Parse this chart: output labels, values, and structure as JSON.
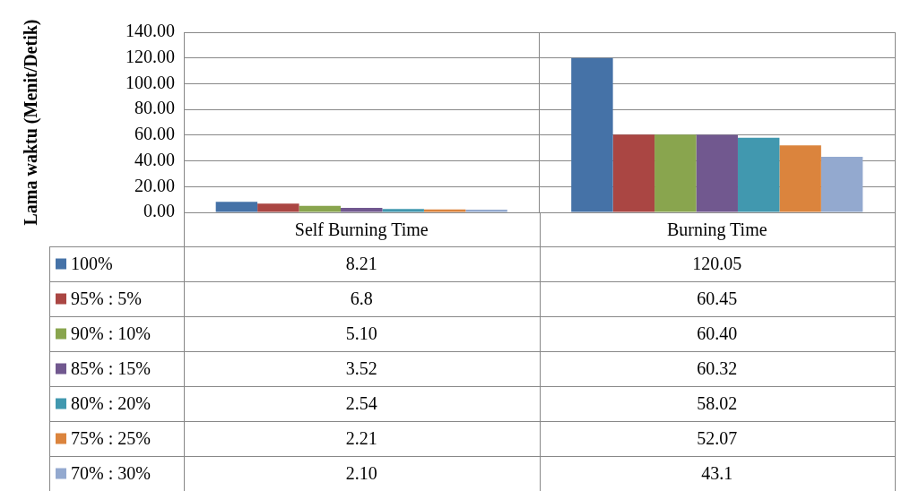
{
  "chart_data": {
    "type": "bar",
    "ylabel": "Lama waktu (Menit/Detik)",
    "categories": [
      "Self Burning Time",
      "Burning Time"
    ],
    "ylim": [
      0,
      140
    ],
    "yticks": [
      {
        "value": 0,
        "label": "0.00"
      },
      {
        "value": 20,
        "label": "20.00"
      },
      {
        "value": 40,
        "label": "40.00"
      },
      {
        "value": 60,
        "label": "60.00"
      },
      {
        "value": 80,
        "label": "80.00"
      },
      {
        "value": 100,
        "label": "100.00"
      },
      {
        "value": 120,
        "label": "120.00"
      },
      {
        "value": 140,
        "label": "140.00"
      }
    ],
    "grid": true,
    "legend": "bottom",
    "series": [
      {
        "name": "100%",
        "color": "#4572a7",
        "values": [
          8.21,
          120.05
        ],
        "value_labels": [
          "8.21",
          "120.05"
        ]
      },
      {
        "name": "95% : 5%",
        "color": "#aa4643",
        "values": [
          6.8,
          60.45
        ],
        "value_labels": [
          "6.8",
          "60.45"
        ]
      },
      {
        "name": "90% : 10%",
        "color": "#89a54e",
        "values": [
          5.1,
          60.4
        ],
        "value_labels": [
          "5.10",
          "60.40"
        ]
      },
      {
        "name": "85% : 15%",
        "color": "#71588f",
        "values": [
          3.52,
          60.32
        ],
        "value_labels": [
          "3.52",
          "60.32"
        ]
      },
      {
        "name": "80% : 20%",
        "color": "#4198af",
        "values": [
          2.54,
          58.02
        ],
        "value_labels": [
          "2.54",
          "58.02"
        ]
      },
      {
        "name": "75% : 25%",
        "color": "#db843d",
        "values": [
          2.21,
          52.07
        ],
        "value_labels": [
          "2.21",
          "52.07"
        ]
      },
      {
        "name": "70% : 30%",
        "color": "#93a9cf",
        "values": [
          2.1,
          43.1
        ],
        "value_labels": [
          "2.10",
          "43.1"
        ]
      }
    ]
  }
}
